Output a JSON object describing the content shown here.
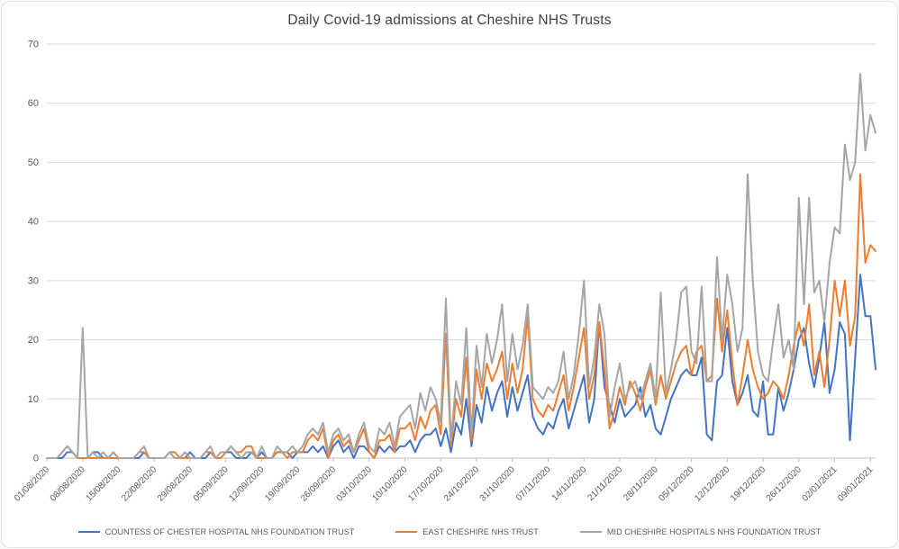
{
  "chart_data": {
    "type": "line",
    "title": "Daily Covid-19 admissions at Cheshire NHS Trusts",
    "xlabel": "",
    "ylabel": "",
    "ylim": [
      0,
      70
    ],
    "y_ticks": [
      0,
      10,
      20,
      30,
      40,
      50,
      60,
      70
    ],
    "grid": "horizontal",
    "legend_position": "bottom",
    "frequency": "daily",
    "start_date": "01/08/2020",
    "end_date": "09/01/2021",
    "x_tick_interval_days": 7,
    "x_tick_labels": [
      "01/08/2020",
      "08/08/2020",
      "15/08/2020",
      "22/08/2020",
      "29/08/2020",
      "05/09/2020",
      "12/09/2020",
      "19/09/2020",
      "26/09/2020",
      "03/10/2020",
      "10/10/2020",
      "17/10/2020",
      "24/10/2020",
      "31/10/2020",
      "07/11/2020",
      "14/11/2020",
      "21/11/2020",
      "28/11/2020",
      "05/12/2020",
      "12/12/2020",
      "19/12/2020",
      "26/12/2020",
      "02/01/2021",
      "09/01/2021"
    ],
    "colors": {
      "title": "#404040",
      "labels": "#595959",
      "gridline": "#d9d9d9",
      "axis": "#bfbfbf"
    },
    "series": [
      {
        "name": "COUNTESS OF CHESTER HOSPITAL NHS FOUNDATION TRUST",
        "color": "#4472C4",
        "values": [
          0,
          0,
          0,
          0,
          1,
          1,
          0,
          0,
          0,
          1,
          1,
          0,
          0,
          1,
          0,
          0,
          0,
          0,
          0,
          1,
          0,
          0,
          0,
          0,
          1,
          0,
          0,
          0,
          1,
          0,
          0,
          0,
          1,
          0,
          0,
          1,
          1,
          0,
          0,
          0,
          1,
          0,
          1,
          0,
          0,
          1,
          1,
          1,
          0,
          1,
          1,
          1,
          2,
          1,
          2,
          0,
          2,
          3,
          1,
          2,
          0,
          2,
          2,
          1,
          0,
          2,
          1,
          2,
          1,
          2,
          2,
          3,
          1,
          3,
          4,
          4,
          5,
          2,
          5,
          1,
          6,
          4,
          10,
          2,
          9,
          6,
          12,
          8,
          11,
          13,
          7,
          12,
          8,
          11,
          14,
          7,
          5,
          4,
          6,
          5,
          8,
          10,
          5,
          8,
          11,
          14,
          6,
          10,
          23,
          12,
          9,
          6,
          10,
          7,
          8,
          9,
          12,
          7,
          9,
          5,
          4,
          7,
          10,
          12,
          14,
          15,
          14,
          14,
          17,
          4,
          3,
          13,
          14,
          22,
          13,
          9,
          11,
          14,
          8,
          7,
          13,
          4,
          4,
          12,
          8,
          11,
          15,
          20,
          22,
          16,
          12,
          17,
          23,
          11,
          15,
          23,
          21,
          3,
          17,
          31,
          24,
          24,
          15
        ]
      },
      {
        "name": "EAST CHESHIRE NHS TRUST",
        "color": "#ED7D31",
        "values": [
          0,
          0,
          0,
          1,
          2,
          1,
          0,
          0,
          0,
          0,
          0,
          0,
          0,
          0,
          0,
          0,
          0,
          0,
          1,
          1,
          0,
          0,
          0,
          0,
          1,
          1,
          0,
          0,
          0,
          0,
          0,
          1,
          1,
          0,
          0,
          1,
          2,
          1,
          1,
          2,
          2,
          0,
          0,
          0,
          0,
          1,
          1,
          0,
          1,
          1,
          1,
          3,
          4,
          3,
          5,
          0,
          3,
          4,
          2,
          3,
          1,
          3,
          5,
          1,
          0,
          3,
          3,
          4,
          1,
          5,
          5,
          6,
          3,
          7,
          5,
          8,
          9,
          4,
          21,
          2,
          10,
          7,
          17,
          3,
          15,
          10,
          16,
          13,
          15,
          18,
          10,
          16,
          11,
          15,
          24,
          10,
          8,
          7,
          9,
          8,
          11,
          14,
          8,
          12,
          17,
          22,
          10,
          14,
          23,
          15,
          5,
          8,
          12,
          9,
          13,
          11,
          8,
          12,
          15,
          9,
          14,
          10,
          13,
          16,
          18,
          19,
          14,
          18,
          19,
          13,
          14,
          27,
          18,
          25,
          16,
          9,
          14,
          20,
          15,
          12,
          10,
          11,
          13,
          12,
          10,
          14,
          19,
          23,
          19,
          26,
          14,
          18,
          12,
          20,
          30,
          24,
          30,
          19,
          24,
          48,
          33,
          36,
          35
        ]
      },
      {
        "name": "MID CHESHIRE HOSPITALS NHS FOUNDATION TRUST",
        "color": "#A5A5A5",
        "values": [
          0,
          0,
          0,
          1,
          2,
          1,
          0,
          22,
          0,
          1,
          0,
          1,
          0,
          1,
          0,
          0,
          0,
          0,
          1,
          2,
          0,
          0,
          0,
          0,
          1,
          0,
          0,
          1,
          0,
          0,
          0,
          1,
          2,
          0,
          1,
          1,
          2,
          1,
          0,
          1,
          1,
          0,
          2,
          0,
          0,
          2,
          1,
          1,
          2,
          1,
          2,
          4,
          5,
          4,
          6,
          1,
          4,
          5,
          3,
          4,
          1,
          4,
          6,
          2,
          1,
          5,
          4,
          6,
          2,
          7,
          8,
          9,
          5,
          11,
          8,
          12,
          10,
          6,
          27,
          3,
          13,
          9,
          22,
          4,
          19,
          12,
          21,
          16,
          20,
          26,
          13,
          21,
          15,
          19,
          26,
          12,
          11,
          10,
          12,
          11,
          13,
          18,
          10,
          14,
          21,
          30,
          12,
          17,
          26,
          21,
          7,
          12,
          16,
          10,
          12,
          13,
          10,
          13,
          16,
          10,
          28,
          11,
          15,
          20,
          28,
          29,
          18,
          16,
          29,
          13,
          13,
          34,
          20,
          31,
          26,
          18,
          22,
          48,
          30,
          18,
          14,
          13,
          20,
          26,
          17,
          20,
          15,
          44,
          26,
          44,
          28,
          30,
          23,
          33,
          39,
          38,
          53,
          47,
          50,
          65,
          52,
          58,
          55
        ]
      }
    ]
  }
}
